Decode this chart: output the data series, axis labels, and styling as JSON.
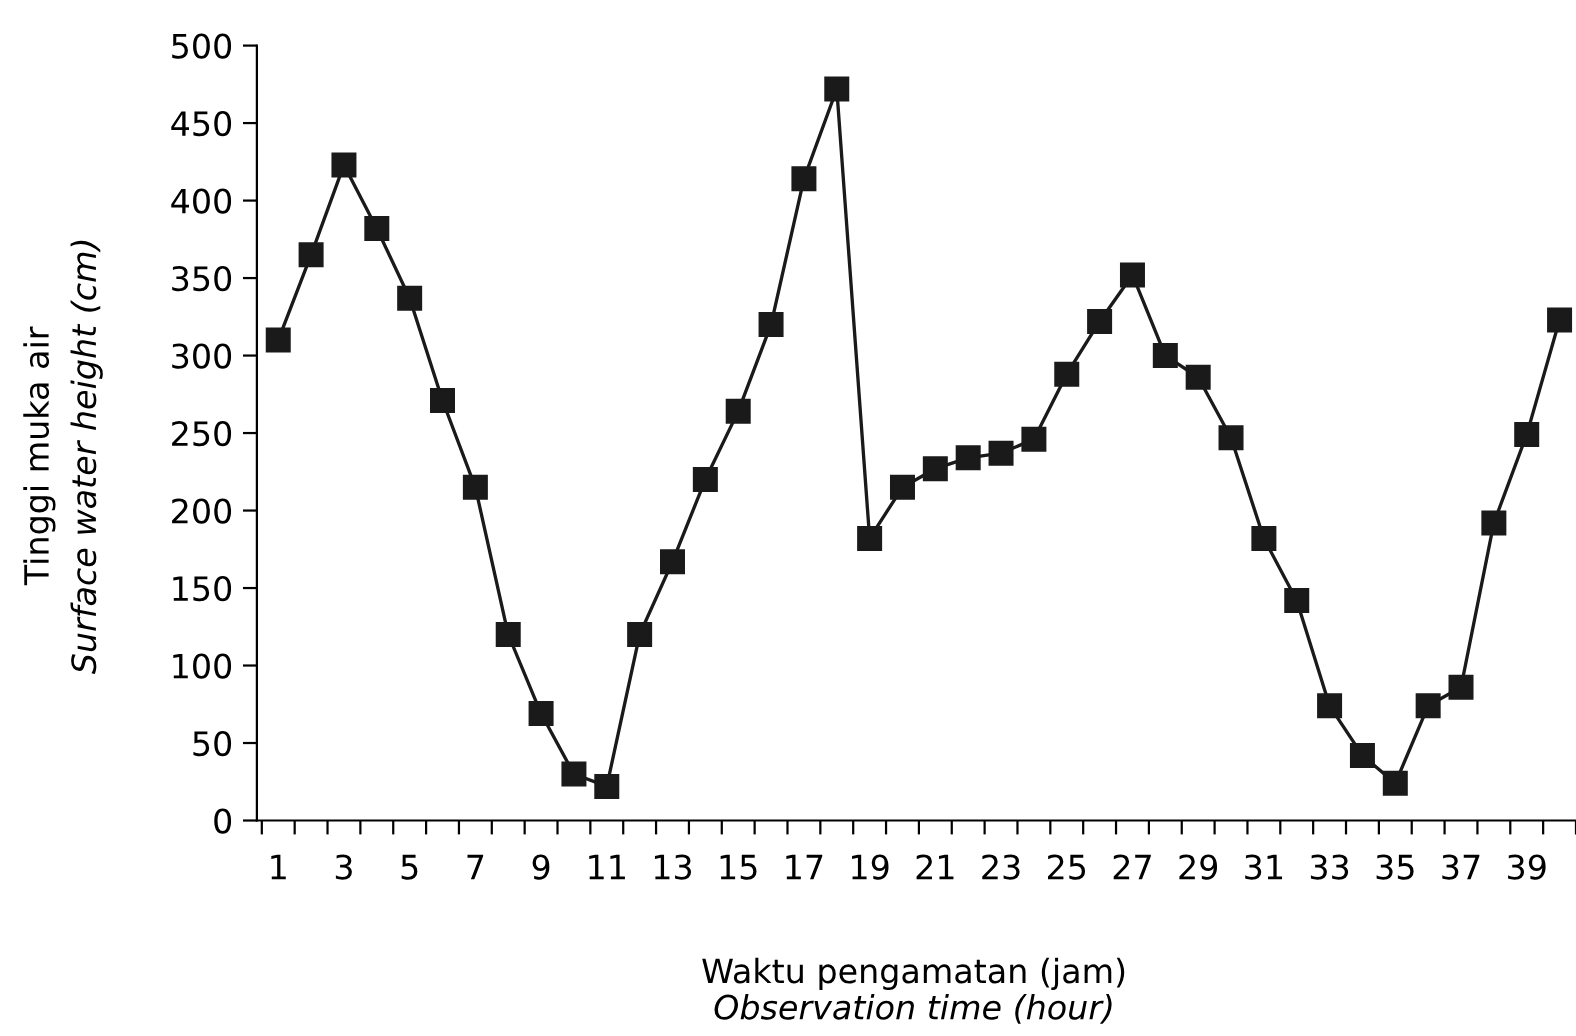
{
  "chart_data": {
    "type": "line",
    "xlabel": "Waktu pengamatan (jam)\nObservation time (hour)",
    "ylabel": "Tinggi muka air\nSurface water height (cm)",
    "categories": [
      "1",
      null,
      "3",
      null,
      "5",
      null,
      "7",
      null,
      "9",
      null,
      "11",
      null,
      "13",
      null,
      "15",
      null,
      "17",
      null,
      "19",
      null,
      "21",
      null,
      "23",
      null,
      "25",
      null,
      "27",
      null,
      "29",
      null,
      "31",
      null,
      "33",
      null,
      "35",
      null,
      "37",
      null,
      "39",
      null
    ],
    "series": [
      {
        "color": "#1a1a1a",
        "values": [
          310,
          365,
          423,
          382,
          337,
          271,
          215,
          120,
          69,
          30,
          22,
          120,
          167,
          220,
          264,
          320,
          414,
          472,
          182,
          215,
          227,
          234,
          237,
          246,
          288,
          322,
          352,
          300,
          286,
          247,
          182,
          142,
          74,
          42,
          24,
          74,
          86,
          192,
          249,
          323
        ]
      }
    ],
    "ylim": [
      0,
      500
    ],
    "yticks": [
      0,
      50,
      100,
      150,
      200,
      250,
      300,
      350,
      400,
      450,
      500
    ],
    "marker": "square",
    "line_style": "solid",
    "grid": false,
    "legend": false
  }
}
